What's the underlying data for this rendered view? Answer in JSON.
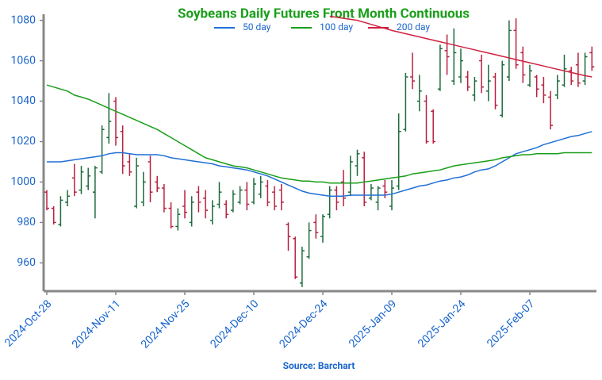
{
  "chart_data": {
    "type": "ohlc",
    "title": "Soybeans Daily Futures Front Month Continuous",
    "source": "Source: Barchart",
    "categories": [
      "2024-Oct-28",
      null,
      null,
      null,
      null,
      null,
      null,
      null,
      null,
      null,
      "2024-Nov-11",
      null,
      null,
      null,
      null,
      null,
      null,
      null,
      null,
      null,
      "2024-Nov-25",
      null,
      null,
      null,
      null,
      null,
      null,
      null,
      null,
      null,
      "2024-Dec-10",
      null,
      null,
      null,
      null,
      null,
      null,
      null,
      null,
      null,
      "2024-Dec-24",
      null,
      null,
      null,
      null,
      null,
      null,
      null,
      null,
      null,
      "2025-Jan-09",
      null,
      null,
      null,
      null,
      null,
      null,
      null,
      null,
      null,
      "2025-Jan-24",
      null,
      null,
      null,
      null,
      null,
      null,
      null,
      null,
      null,
      "2025-Feb-07",
      null,
      null,
      null,
      null,
      null,
      null,
      null,
      null,
      null
    ],
    "open": [
      995,
      987,
      979,
      990,
      1002,
      996,
      998,
      995,
      1005,
      1022,
      1040,
      1025,
      1010,
      988,
      990,
      1010,
      1000,
      997,
      987,
      978,
      988,
      980,
      995,
      992,
      981,
      989,
      989,
      986,
      990,
      996,
      990,
      994,
      998,
      995,
      996,
      979,
      972,
      950,
      963,
      980,
      973,
      984,
      996,
      1000,
      995,
      1008,
      1012,
      992,
      990,
      998,
      988,
      998,
      1026,
      1052,
      1040,
      1040,
      1035,
      1046,
      1065,
      1050,
      1052,
      1052,
      1043,
      1060,
      1045,
      1052,
      1033,
      1052,
      1075,
      1064,
      1048,
      1052,
      1048,
      1042,
      1043,
      1048,
      1055,
      1058,
      1050,
      1064
    ],
    "high": [
      996,
      988,
      993,
      996,
      1009,
      1008,
      1007,
      1008,
      1028,
      1044,
      1042,
      1028,
      1014,
      1012,
      1005,
      1013,
      1003,
      999,
      990,
      987,
      996,
      993,
      998,
      996,
      991,
      1000,
      991,
      996,
      998,
      1000,
      1002,
      1003,
      1001,
      998,
      999,
      980,
      973,
      968,
      980,
      984,
      984,
      998,
      998,
      1006,
      1013,
      1016,
      1015,
      999,
      998,
      1001,
      1001,
      1034,
      1054,
      1064,
      1053,
      1043,
      1036,
      1068,
      1073,
      1076,
      1066,
      1055,
      1052,
      1063,
      1058,
      1054,
      1060,
      1080,
      1081,
      1067,
      1058,
      1053,
      1052,
      1045,
      1053,
      1063,
      1057,
      1064,
      1064,
      1067
    ],
    "low": [
      986,
      979,
      978,
      988,
      993,
      994,
      996,
      982,
      1004,
      1019,
      1018,
      1004,
      1003,
      987,
      988,
      990,
      995,
      985,
      977,
      976,
      982,
      978,
      985,
      982,
      979,
      987,
      982,
      985,
      989,
      986,
      989,
      992,
      988,
      986,
      986,
      966,
      952,
      948,
      962,
      972,
      970,
      982,
      986,
      988,
      993,
      1003,
      988,
      991,
      986,
      992,
      986,
      996,
      1025,
      1046,
      1035,
      1019,
      1019,
      1045,
      1053,
      1048,
      1049,
      1045,
      1040,
      1044,
      1040,
      1036,
      1032,
      1050,
      1056,
      1049,
      1047,
      1042,
      1039,
      1026,
      1041,
      1047,
      1048,
      1047,
      1048,
      1055
    ],
    "close": [
      987,
      980,
      991,
      993,
      995,
      1005,
      1003,
      1007,
      1026,
      1030,
      1022,
      1008,
      1005,
      1008,
      1000,
      995,
      997,
      987,
      978,
      984,
      985,
      990,
      990,
      986,
      988,
      995,
      984,
      994,
      996,
      989,
      999,
      1000,
      990,
      988,
      990,
      973,
      953,
      966,
      976,
      975,
      983,
      996,
      990,
      992,
      1010,
      1014,
      990,
      997,
      997,
      995,
      997,
      1025,
      1052,
      1050,
      1045,
      1020,
      1020,
      1066,
      1062,
      1064,
      1060,
      1047,
      1050,
      1047,
      1050,
      1038,
      1058,
      1075,
      1058,
      1053,
      1055,
      1046,
      1043,
      1028,
      1050,
      1056,
      1050,
      1049,
      1062,
      1057
    ],
    "up_color": "#1e6b3c",
    "down_color": "#b8213f",
    "series": [
      {
        "name": "50 day",
        "color": "#1f6fd6",
        "values": [
          1010,
          1010,
          1010,
          1010.5,
          1011,
          1011.5,
          1012,
          1012.5,
          1013,
          1014,
          1014.5,
          1014.5,
          1014,
          1013.5,
          1013.5,
          1013.5,
          1013.5,
          1013,
          1012,
          1011.5,
          1011,
          1010.5,
          1010,
          1009.5,
          1009,
          1008,
          1007.5,
          1007,
          1006.5,
          1006,
          1005,
          1004,
          1003,
          1001.5,
          1000,
          998.5,
          997,
          995.5,
          994.5,
          994,
          993.5,
          993,
          993,
          993,
          993.5,
          993.5,
          993.5,
          993.5,
          993.5,
          993.5,
          994,
          995,
          996,
          997,
          998,
          998.5,
          999.5,
          1000.5,
          1001,
          1002,
          1002.5,
          1003.5,
          1005,
          1006,
          1006.5,
          1008,
          1010,
          1012,
          1014,
          1015,
          1016,
          1017,
          1018.5,
          1019.5,
          1020.5,
          1021.5,
          1022.5,
          1023,
          1024,
          1025
        ]
      },
      {
        "name": "100 day",
        "color": "#1a9e1a",
        "values": [
          1048,
          1047,
          1046,
          1045,
          1043,
          1042,
          1041,
          1039.5,
          1038,
          1036.5,
          1035,
          1033.5,
          1032,
          1030.5,
          1029,
          1027.5,
          1026,
          1024,
          1022,
          1020,
          1018,
          1016,
          1014,
          1012,
          1011,
          1010,
          1009,
          1008,
          1007.5,
          1007,
          1006,
          1005,
          1004,
          1003,
          1002,
          1001.5,
          1001,
          1000.5,
          1000.5,
          1000,
          1000,
          999.5,
          999.5,
          999.5,
          999.5,
          999.5,
          1000,
          1000.5,
          1001,
          1001.5,
          1002,
          1002.5,
          1003,
          1004,
          1004.5,
          1005,
          1005.5,
          1006,
          1007,
          1008,
          1008.5,
          1009,
          1009.5,
          1010,
          1010.5,
          1011,
          1012,
          1012.5,
          1013,
          1013.5,
          1013.5,
          1014,
          1014,
          1014,
          1014,
          1014.5,
          1014.5,
          1014.5,
          1014.5,
          1014.5
        ]
      },
      {
        "name": "200 day",
        "color": "#d0213f",
        "values": [
          null,
          null,
          null,
          null,
          null,
          null,
          null,
          null,
          null,
          null,
          null,
          null,
          null,
          null,
          null,
          null,
          null,
          null,
          null,
          null,
          null,
          null,
          null,
          null,
          null,
          null,
          null,
          null,
          null,
          null,
          null,
          null,
          null,
          null,
          null,
          null,
          null,
          null,
          null,
          null,
          null,
          1082,
          1081.5,
          1081,
          1080.5,
          1080,
          1079,
          1078,
          1077,
          1076,
          1075,
          1074.2,
          1073.4,
          1072.6,
          1071.8,
          1071,
          1070.2,
          1069.4,
          1068.6,
          1067.8,
          1067,
          1066.2,
          1065.4,
          1064.6,
          1063.8,
          1063,
          1062.2,
          1061.4,
          1060.6,
          1059.8,
          1059,
          1058.2,
          1057.4,
          1056.6,
          1055.8,
          1055,
          1054.2,
          1053.4,
          1052.6,
          1052
        ]
      }
    ],
    "ylim": [
      946,
      1083
    ],
    "yticks": [
      960,
      980,
      1000,
      1020,
      1040,
      1060,
      1080
    ]
  }
}
